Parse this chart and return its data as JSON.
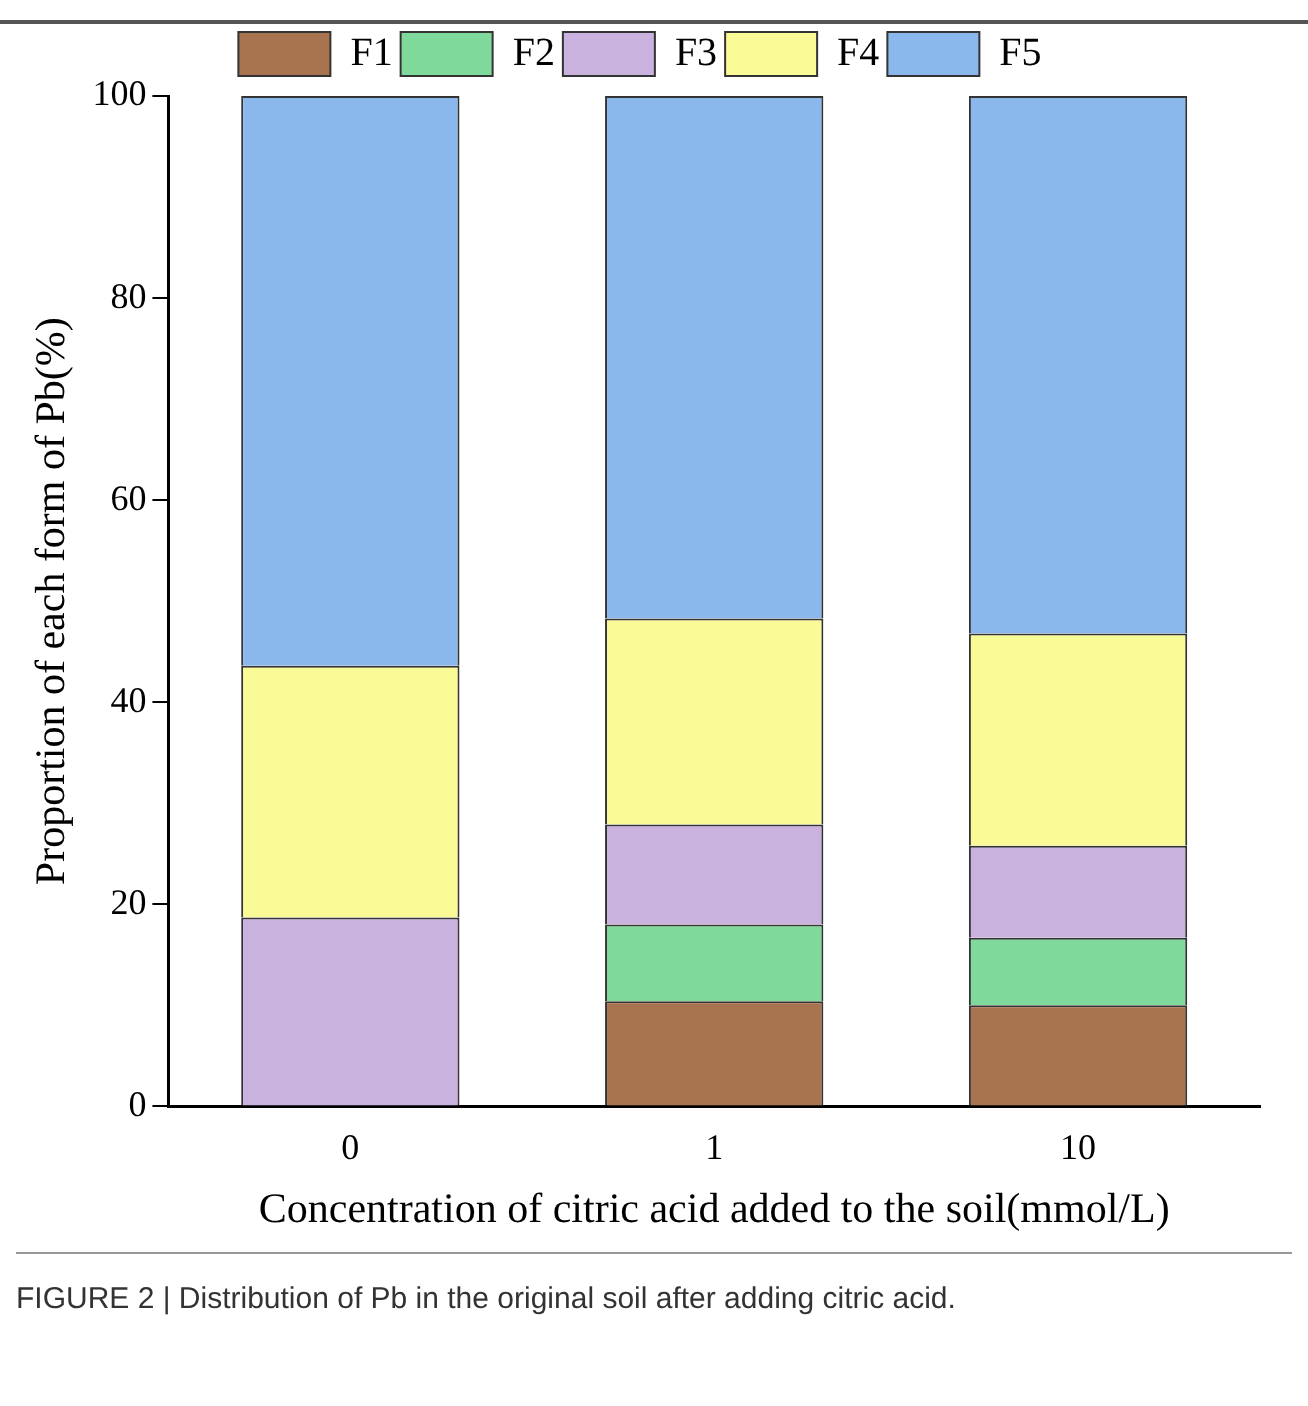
{
  "chart_data": {
    "type": "bar",
    "stacked": true,
    "xlabel": "Concentration of citric acid added to the soil(mmol/L)",
    "ylabel": "Proportion of each form of Pb(%)",
    "categories": [
      "0",
      "1",
      "10"
    ],
    "series": [
      {
        "name": "F1",
        "color": "#a87450",
        "values": [
          0,
          10.4,
          10.0
        ]
      },
      {
        "name": "F2",
        "color": "#7fd99a",
        "values": [
          0,
          7.6,
          6.7
        ]
      },
      {
        "name": "F3",
        "color": "#c9b2dd",
        "values": [
          18.7,
          9.9,
          9.1
        ]
      },
      {
        "name": "F4",
        "color": "#fafa96",
        "values": [
          24.9,
          20.4,
          21.0
        ]
      },
      {
        "name": "F5",
        "color": "#8ab8ec",
        "values": [
          56.4,
          51.7,
          53.2
        ]
      }
    ],
    "ylim": [
      0,
      100
    ],
    "yticks": [
      0,
      20,
      40,
      60,
      80,
      100
    ],
    "grid": false,
    "legend": "top",
    "annotations": [
      "FIGURE 2 | Distribution of Pb in the original soil after adding citric acid."
    ]
  }
}
